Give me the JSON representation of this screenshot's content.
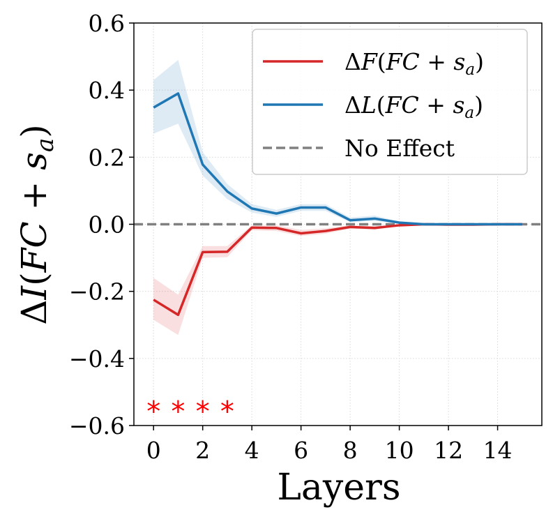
{
  "chart_data": {
    "type": "line",
    "title": "",
    "xlabel": "Layers",
    "ylabel": {
      "prefix": "Δ",
      "var": "I",
      "open": "(",
      "fc": "FC",
      "plus": " + ",
      "s": "s",
      "sub": "a",
      "close": ")"
    },
    "xlim": [
      -0.8,
      15.8
    ],
    "ylim": [
      -0.6,
      0.6
    ],
    "x_ticks": [
      0,
      2,
      4,
      6,
      8,
      10,
      12,
      14
    ],
    "x_tick_labels": [
      "0",
      "2",
      "4",
      "6",
      "8",
      "10",
      "12",
      "14"
    ],
    "y_ticks": [
      -0.6,
      -0.4,
      -0.2,
      0.0,
      0.2,
      0.4,
      0.6
    ],
    "y_tick_labels": [
      "−0.6",
      "−0.4",
      "−0.2",
      "0.0",
      "0.2",
      "0.4",
      "0.6"
    ],
    "grid": true,
    "x": [
      0,
      1,
      2,
      3,
      4,
      5,
      6,
      7,
      8,
      9,
      10,
      11,
      12,
      13,
      14,
      15
    ],
    "series": [
      {
        "name": "ΔF(FC + s_a)",
        "color": "#d62728",
        "values": [
          -0.225,
          -0.27,
          -0.083,
          -0.082,
          -0.01,
          -0.011,
          -0.027,
          -0.02,
          -0.008,
          -0.011,
          -0.003,
          0.0,
          -0.001,
          -0.001,
          0.0,
          0.0
        ],
        "lower": [
          -0.285,
          -0.33,
          -0.1,
          -0.098,
          -0.018,
          -0.02,
          -0.035,
          -0.028,
          -0.013,
          -0.016,
          -0.005,
          -0.002,
          -0.002,
          -0.002,
          -0.001,
          -0.001
        ],
        "upper": [
          -0.16,
          -0.21,
          -0.065,
          -0.065,
          -0.003,
          -0.003,
          -0.017,
          -0.012,
          -0.003,
          -0.006,
          -0.001,
          0.001,
          0.0,
          0.0,
          0.001,
          0.001
        ]
      },
      {
        "name": "ΔL(FC + s_a)",
        "color": "#1f77b4",
        "values": [
          0.348,
          0.39,
          0.178,
          0.098,
          0.047,
          0.032,
          0.05,
          0.05,
          0.012,
          0.017,
          0.005,
          0.0,
          0.0,
          0.0,
          0.0,
          0.0
        ],
        "lower": [
          0.27,
          0.3,
          0.145,
          0.075,
          0.035,
          0.022,
          0.04,
          0.04,
          0.006,
          0.01,
          0.002,
          -0.001,
          -0.001,
          -0.001,
          -0.001,
          -0.001
        ],
        "upper": [
          0.43,
          0.49,
          0.215,
          0.12,
          0.06,
          0.043,
          0.06,
          0.06,
          0.02,
          0.026,
          0.008,
          0.001,
          0.001,
          0.001,
          0.001,
          0.001
        ]
      }
    ],
    "baseline": {
      "name": "No Effect",
      "y": 0.0,
      "color": "#808080",
      "style": "dashed"
    },
    "significance": {
      "symbol": "*",
      "x": [
        0,
        1,
        2,
        3
      ],
      "y": -0.545,
      "color": "#ff0000"
    },
    "legend": {
      "position": "top-right",
      "entries": [
        {
          "prefix": "Δ",
          "var": "F",
          "open": "(",
          "fc": "FC",
          "plus": " + ",
          "s": "s",
          "sub": "a",
          "close": ")",
          "color": "#d62728",
          "style": "solid"
        },
        {
          "prefix": "Δ",
          "var": "L",
          "open": "(",
          "fc": "FC",
          "plus": " + ",
          "s": "s",
          "sub": "a",
          "close": ")",
          "color": "#1f77b4",
          "style": "solid"
        },
        {
          "text": "No Effect",
          "color": "#808080",
          "style": "dashed"
        }
      ]
    }
  }
}
